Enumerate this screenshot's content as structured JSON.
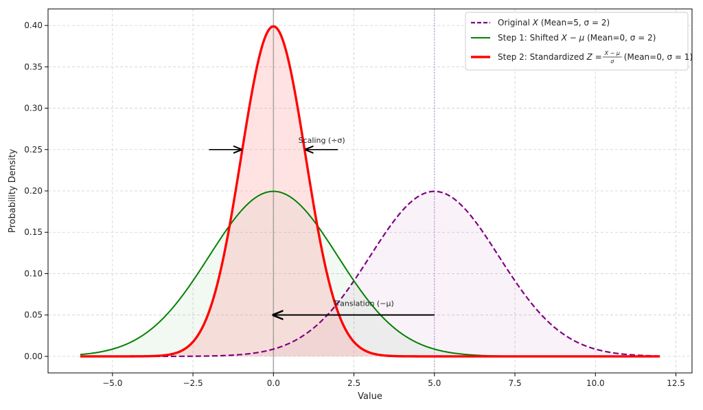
{
  "chart_data": {
    "type": "line",
    "xlabel": "Value",
    "ylabel": "Probability Density",
    "xlim": [
      -7.0,
      13.0
    ],
    "ylim": [
      -0.02,
      0.42
    ],
    "xticks": [
      -5.0,
      -2.5,
      0.0,
      2.5,
      5.0,
      7.5,
      10.0,
      12.5
    ],
    "xtick_labels": [
      "−5.0",
      "−2.5",
      "0.0",
      "2.5",
      "5.0",
      "7.5",
      "10.0",
      "12.5"
    ],
    "yticks": [
      0.0,
      0.05,
      0.1,
      0.15,
      0.2,
      0.25,
      0.3,
      0.35,
      0.4
    ],
    "ytick_labels": [
      "0.00",
      "0.05",
      "0.10",
      "0.15",
      "0.20",
      "0.25",
      "0.30",
      "0.35",
      "0.40"
    ],
    "grid": true,
    "legend_position": "top-right",
    "x_range": [
      -6,
      12
    ],
    "series": [
      {
        "name": "Original X (Mean=5, σ = 2)",
        "legend_label": {
          "pre": "Original ",
          "var": "X",
          "post": " (Mean=5, σ = 2)"
        },
        "mean": 5,
        "sd": 2,
        "color": "#800080",
        "style": "dashed",
        "fill_color": "#800080"
      },
      {
        "name": "Step 1: Shifted X − μ (Mean=0, σ = 2)",
        "legend_label": {
          "pre": "Step 1: Shifted ",
          "var": "X − μ",
          "post": " (Mean=0, σ = 2)"
        },
        "mean": 0,
        "sd": 2,
        "color": "#008000",
        "style": "solid",
        "fill_color": "#008000"
      },
      {
        "name": "Step 2: Standardized Z = (X−μ)/σ (Mean=0, σ = 1)",
        "legend_label": {
          "pre": "Step 2: Standardized ",
          "var": "Z",
          "frac_num": "X − μ",
          "frac_den": "σ",
          "post": " (Mean=0, σ = 1)"
        },
        "mean": 0,
        "sd": 1,
        "color": "#ff0000",
        "style": "solid-thick",
        "fill_color": "#ff9090"
      }
    ],
    "vlines": [
      {
        "x": 0,
        "color": "#999999"
      },
      {
        "x": 5,
        "color": "#b08ad0"
      }
    ],
    "annotations": [
      {
        "text": "Translation (−μ)",
        "x": 2.8,
        "y": 0.061,
        "arrow_from": [
          5.0,
          0.05
        ],
        "arrow_to": [
          0.0,
          0.05
        ]
      },
      {
        "text": "Scaling (÷σ)",
        "x": 1.5,
        "y": 0.258,
        "arrows": [
          {
            "from": [
              -2.0,
              0.25
            ],
            "to": [
              -1.0,
              0.25
            ]
          },
          {
            "from": [
              2.0,
              0.25
            ],
            "to": [
              1.0,
              0.25
            ]
          }
        ]
      }
    ]
  }
}
